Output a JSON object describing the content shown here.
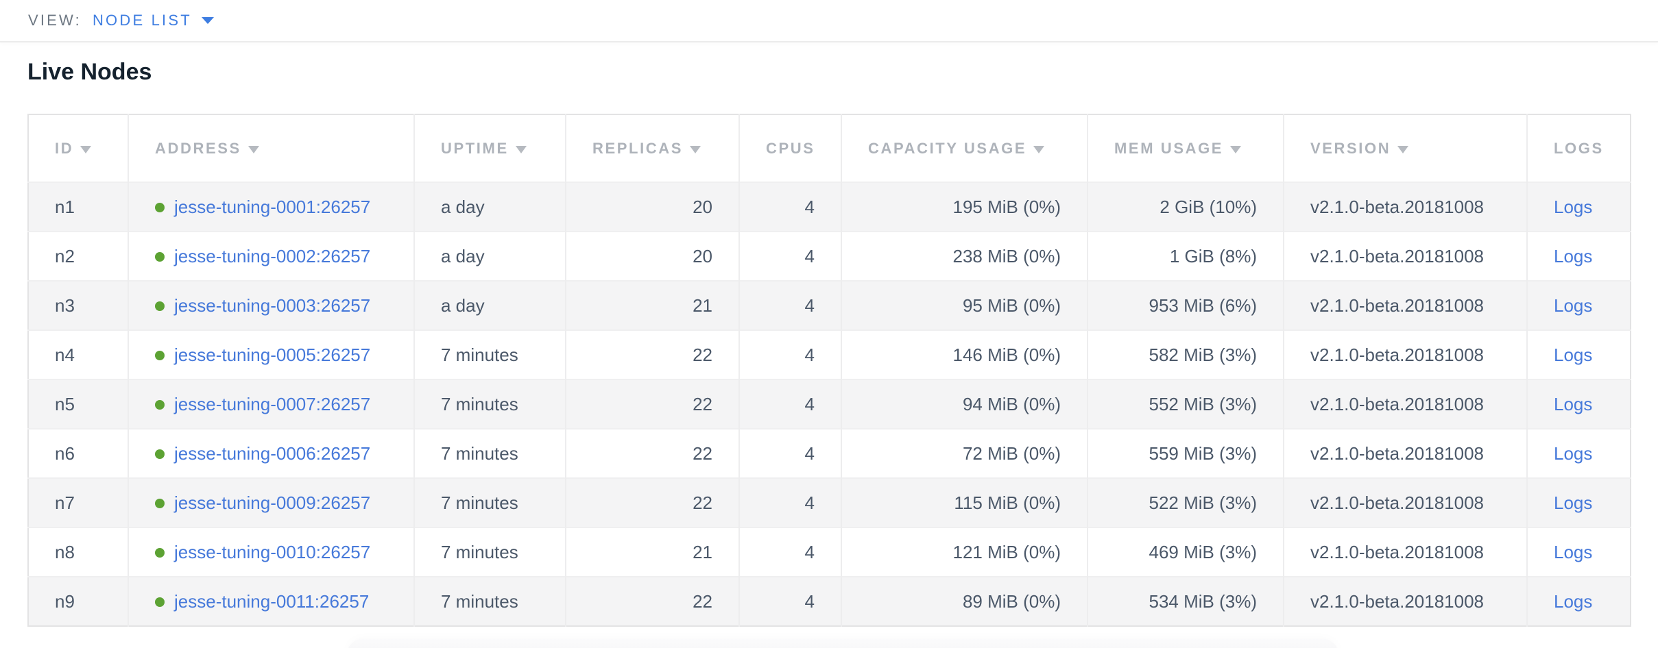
{
  "view_bar": {
    "label": "VIEW:",
    "selected_view": "NODE LIST"
  },
  "page_title": "Live Nodes",
  "table": {
    "columns": [
      {
        "key": "id",
        "label": "ID",
        "sortable": true,
        "align": "left"
      },
      {
        "key": "address",
        "label": "ADDRESS",
        "sortable": true,
        "align": "left"
      },
      {
        "key": "uptime",
        "label": "UPTIME",
        "sortable": true,
        "align": "left"
      },
      {
        "key": "replicas",
        "label": "REPLICAS",
        "sortable": true,
        "align": "right"
      },
      {
        "key": "cpus",
        "label": "CPUS",
        "sortable": false,
        "align": "right"
      },
      {
        "key": "capacity_usage",
        "label": "CAPACITY USAGE",
        "sortable": true,
        "align": "right"
      },
      {
        "key": "mem_usage",
        "label": "MEM USAGE",
        "sortable": true,
        "align": "right"
      },
      {
        "key": "version",
        "label": "VERSION",
        "sortable": true,
        "align": "left"
      },
      {
        "key": "logs",
        "label": "LOGS",
        "sortable": false,
        "align": "left"
      }
    ],
    "rows": [
      {
        "id": "n1",
        "status": "live",
        "address": "jesse-tuning-0001:26257",
        "uptime": "a day",
        "replicas": "20",
        "cpus": "4",
        "capacity_usage": "195 MiB (0%)",
        "mem_usage": "2 GiB (10%)",
        "version": "v2.1.0-beta.20181008",
        "logs": "Logs"
      },
      {
        "id": "n2",
        "status": "live",
        "address": "jesse-tuning-0002:26257",
        "uptime": "a day",
        "replicas": "20",
        "cpus": "4",
        "capacity_usage": "238 MiB (0%)",
        "mem_usage": "1 GiB (8%)",
        "version": "v2.1.0-beta.20181008",
        "logs": "Logs"
      },
      {
        "id": "n3",
        "status": "live",
        "address": "jesse-tuning-0003:26257",
        "uptime": "a day",
        "replicas": "21",
        "cpus": "4",
        "capacity_usage": "95 MiB (0%)",
        "mem_usage": "953 MiB (6%)",
        "version": "v2.1.0-beta.20181008",
        "logs": "Logs"
      },
      {
        "id": "n4",
        "status": "live",
        "address": "jesse-tuning-0005:26257",
        "uptime": "7 minutes",
        "replicas": "22",
        "cpus": "4",
        "capacity_usage": "146 MiB (0%)",
        "mem_usage": "582 MiB (3%)",
        "version": "v2.1.0-beta.20181008",
        "logs": "Logs"
      },
      {
        "id": "n5",
        "status": "live",
        "address": "jesse-tuning-0007:26257",
        "uptime": "7 minutes",
        "replicas": "22",
        "cpus": "4",
        "capacity_usage": "94 MiB (0%)",
        "mem_usage": "552 MiB (3%)",
        "version": "v2.1.0-beta.20181008",
        "logs": "Logs"
      },
      {
        "id": "n6",
        "status": "live",
        "address": "jesse-tuning-0006:26257",
        "uptime": "7 minutes",
        "replicas": "22",
        "cpus": "4",
        "capacity_usage": "72 MiB (0%)",
        "mem_usage": "559 MiB (3%)",
        "version": "v2.1.0-beta.20181008",
        "logs": "Logs"
      },
      {
        "id": "n7",
        "status": "live",
        "address": "jesse-tuning-0009:26257",
        "uptime": "7 minutes",
        "replicas": "22",
        "cpus": "4",
        "capacity_usage": "115 MiB (0%)",
        "mem_usage": "522 MiB (3%)",
        "version": "v2.1.0-beta.20181008",
        "logs": "Logs"
      },
      {
        "id": "n8",
        "status": "live",
        "address": "jesse-tuning-0010:26257",
        "uptime": "7 minutes",
        "replicas": "21",
        "cpus": "4",
        "capacity_usage": "121 MiB (0%)",
        "mem_usage": "469 MiB (3%)",
        "version": "v2.1.0-beta.20181008",
        "logs": "Logs"
      },
      {
        "id": "n9",
        "status": "live",
        "address": "jesse-tuning-0011:26257",
        "uptime": "7 minutes",
        "replicas": "22",
        "cpus": "4",
        "capacity_usage": "89 MiB (0%)",
        "mem_usage": "534 MiB (3%)",
        "version": "v2.1.0-beta.20181008",
        "logs": "Logs"
      }
    ]
  },
  "colors": {
    "accent_blue": "#3e7de1",
    "link_blue": "#4679da",
    "live_dot_green": "#5ca233",
    "header_gray": "#aeb3ba",
    "cell_text": "#4b5869",
    "row_stripe": "#f4f4f5"
  }
}
